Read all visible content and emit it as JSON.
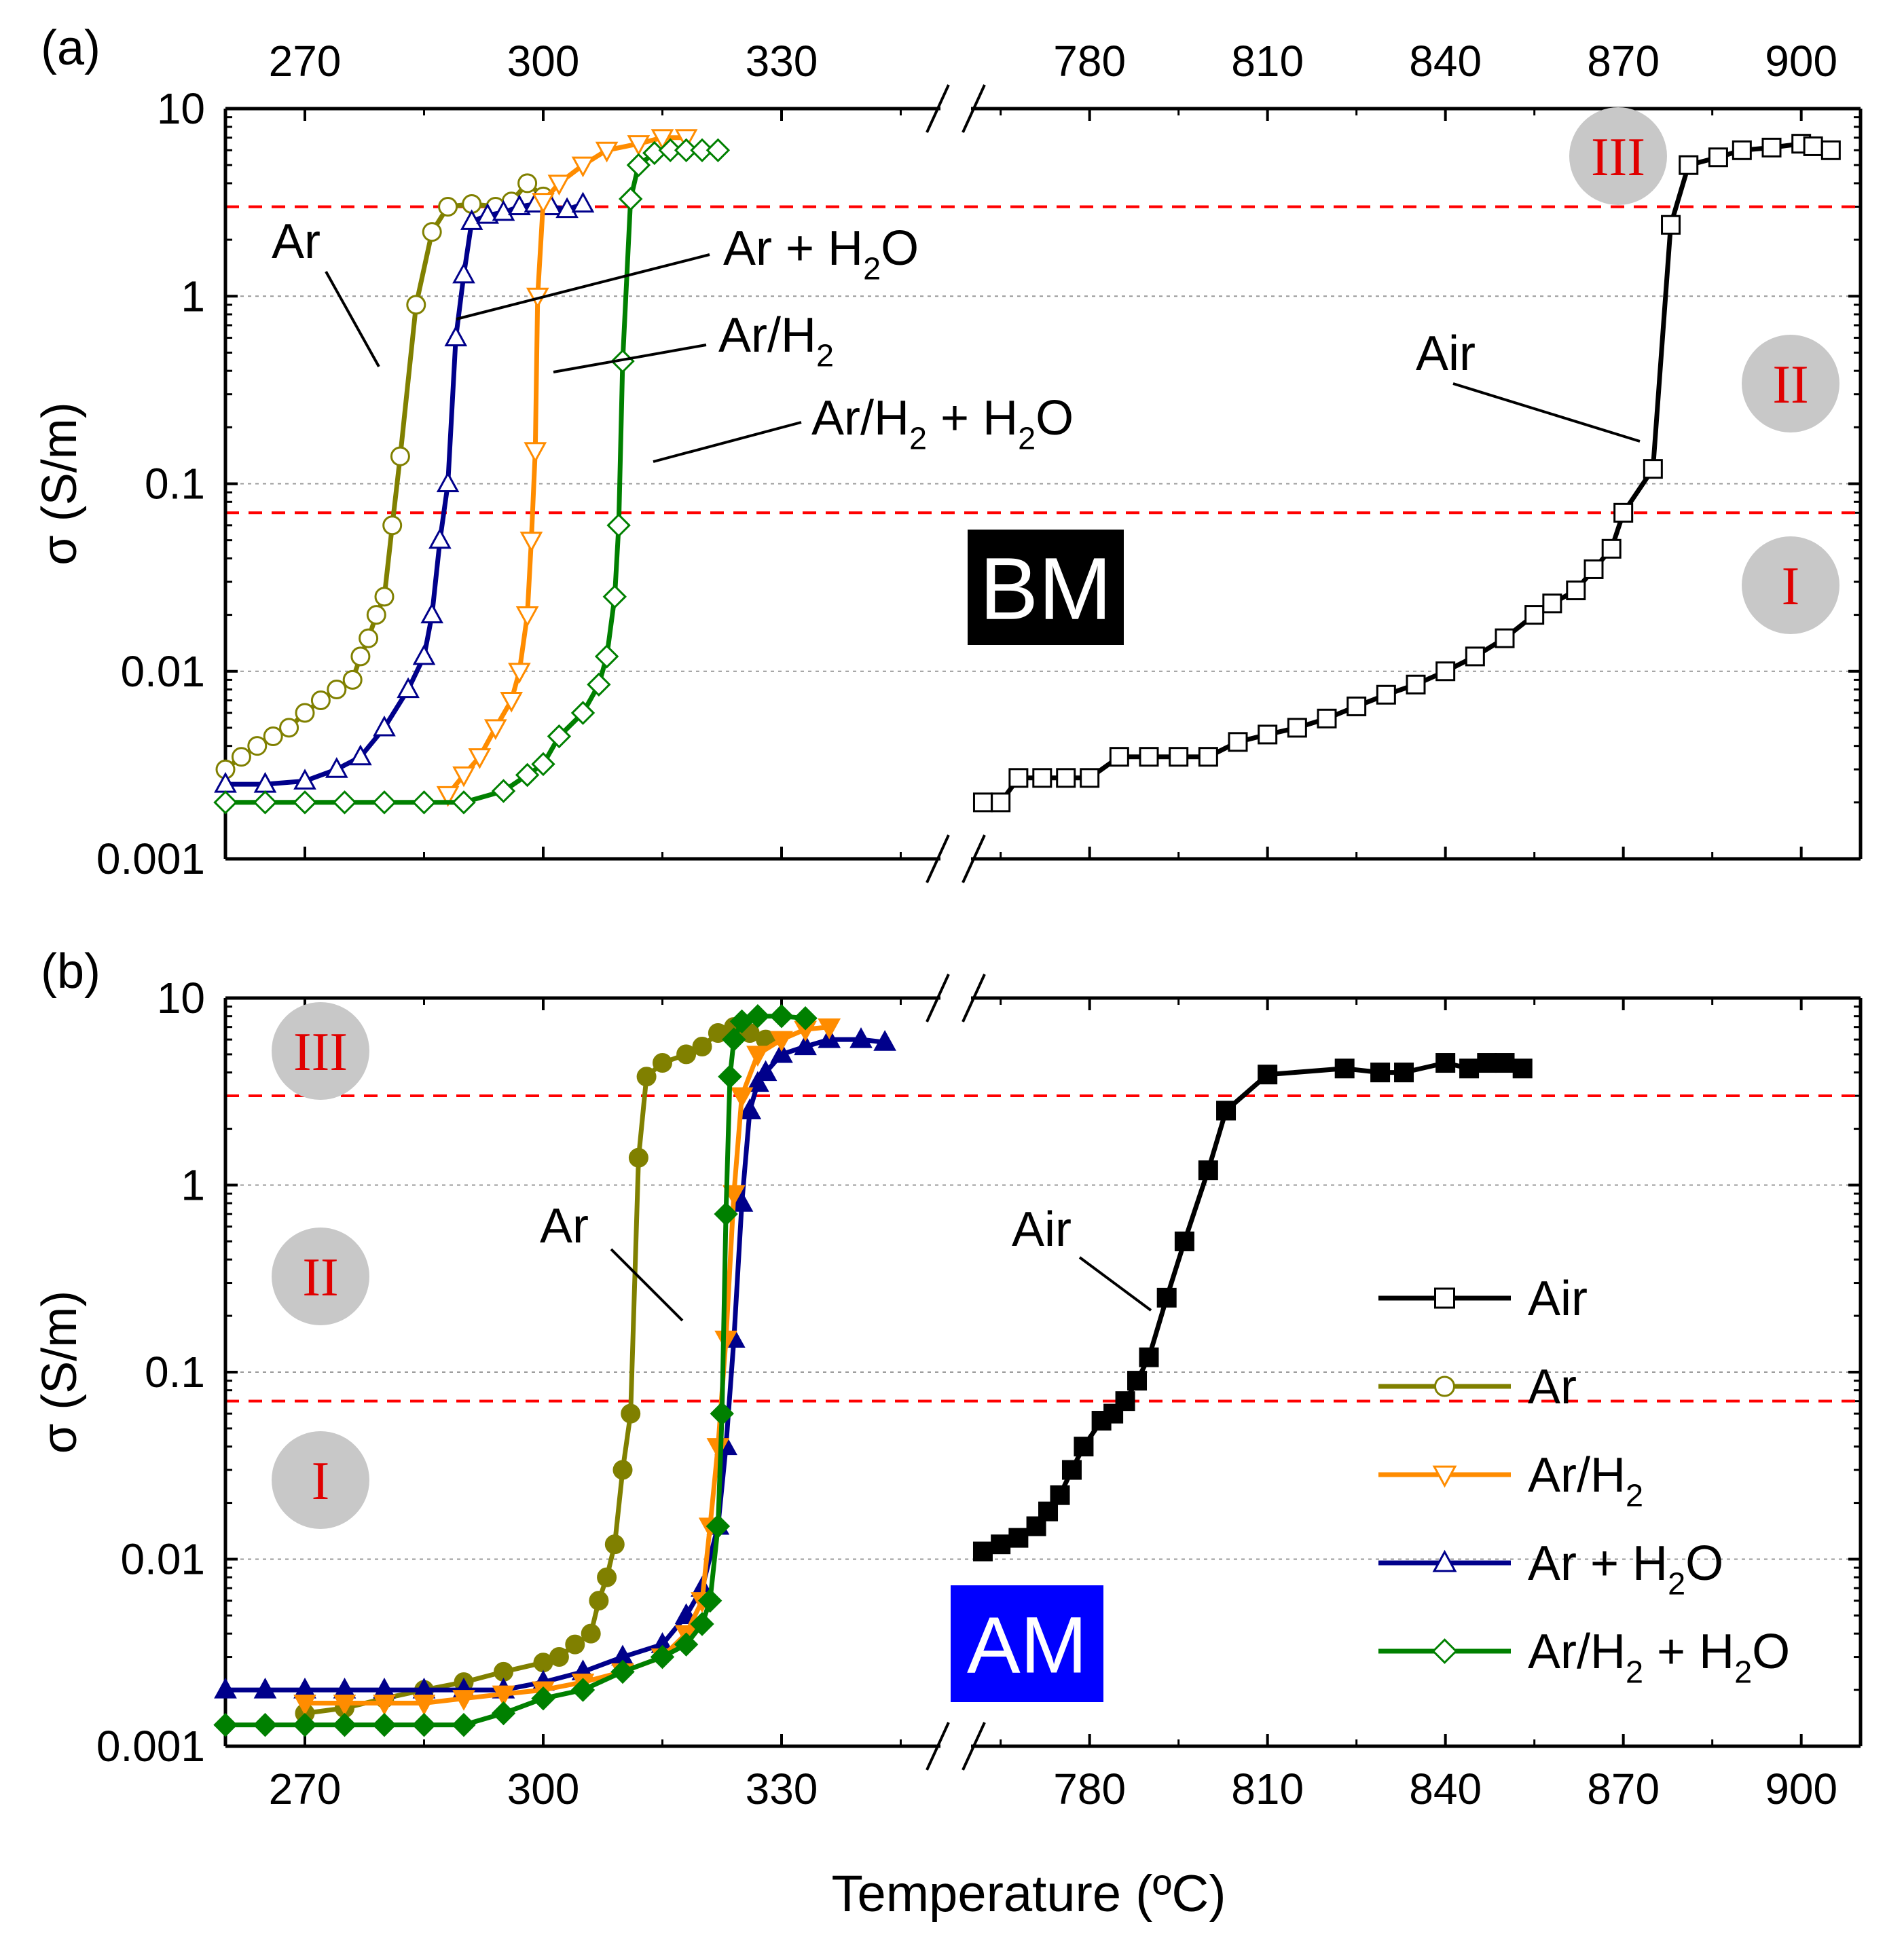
{
  "figure": {
    "x_axis_label": "Temperature (ºC)",
    "y_axis_label": "σ (S/m)",
    "colors": {
      "Air": "#000000",
      "Ar": "#808000",
      "Ar/H2": "#ff8c00",
      "Ar + H2O": "#00008b",
      "Ar/H2 + H2O": "#008000",
      "threshold": "#ff0000",
      "region_text": "#e00000",
      "region_circle": "#c8c8c8",
      "BM_badge": "#000000",
      "AM_badge": "#0000ff"
    },
    "legend": {
      "items": [
        {
          "key": "Air",
          "label": "Air",
          "marker": "square"
        },
        {
          "key": "Ar",
          "label": "Ar",
          "marker": "circle"
        },
        {
          "key": "Ar/H2",
          "label": "Ar/H",
          "sub1": "2",
          "marker": "tri-down"
        },
        {
          "key": "Ar + H2O",
          "label": "Ar + H",
          "sub1": "2",
          "tail": "O",
          "marker": "tri-up"
        },
        {
          "key": "Ar/H2 + H2O",
          "label": "Ar/H",
          "sub1": "2",
          "mid": " + H",
          "sub2": "2",
          "tail": "O",
          "marker": "diamond"
        }
      ]
    }
  },
  "chart_data": [
    {
      "panel_label": "(a)",
      "badge": "BM",
      "type": "scatter",
      "title": "",
      "xlabel": "",
      "ylabel": "σ (S/m)",
      "yscale": "log",
      "ylim": [
        0.001,
        10
      ],
      "y_ticks": [
        "0.001",
        "0.01",
        "0.1",
        "1",
        "10"
      ],
      "x_broken_axis": true,
      "x_left_range": [
        260,
        350
      ],
      "x_right_range": [
        760,
        910
      ],
      "x_left_ticks": [
        "270",
        "300",
        "330"
      ],
      "x_right_ticks": [
        "780",
        "810",
        "840",
        "870",
        "900"
      ],
      "thresholds": [
        3,
        0.07
      ],
      "regions": [
        "III",
        "II",
        "I"
      ],
      "annotations": [
        {
          "text": "Ar",
          "series": "Ar"
        },
        {
          "text": "Ar + H",
          "sub1": "2",
          "tail": "O",
          "series": "Ar + H2O"
        },
        {
          "text": "Ar/H",
          "sub1": "2",
          "series": "Ar/H2"
        },
        {
          "text": "Ar/H",
          "sub1": "2",
          "mid": " + H",
          "sub2": "2",
          "tail": "O",
          "series": "Ar/H2 + H2O"
        },
        {
          "text": "Air",
          "series": "Air"
        }
      ],
      "series": [
        {
          "name": "Ar",
          "filled": false,
          "marker": "circle",
          "x": [
            260,
            262,
            264,
            266,
            268,
            270,
            272,
            274,
            276,
            277,
            278,
            279,
            280,
            281,
            282,
            284,
            286,
            288,
            291,
            294,
            296,
            298,
            300
          ],
          "y": [
            0.003,
            0.0035,
            0.004,
            0.0045,
            0.005,
            0.006,
            0.007,
            0.008,
            0.009,
            0.012,
            0.015,
            0.02,
            0.025,
            0.06,
            0.14,
            0.9,
            2.2,
            3.0,
            3.1,
            3.0,
            3.2,
            4.0,
            3.4
          ]
        },
        {
          "name": "Ar + H2O",
          "filled": false,
          "marker": "tri-up",
          "x": [
            260,
            265,
            270,
            274,
            277,
            280,
            283,
            285,
            286,
            287,
            288,
            289,
            290,
            291,
            293,
            295,
            297,
            299,
            301,
            303,
            305
          ],
          "y": [
            0.0025,
            0.0025,
            0.0026,
            0.003,
            0.0035,
            0.005,
            0.008,
            0.012,
            0.02,
            0.05,
            0.1,
            0.6,
            1.3,
            2.5,
            2.7,
            2.8,
            3.0,
            3.1,
            3.0,
            2.9,
            3.1
          ]
        },
        {
          "name": "Ar/H2",
          "filled": false,
          "marker": "tri-down",
          "x": [
            288,
            290,
            292,
            294,
            296,
            297,
            298,
            298.5,
            299,
            299.3,
            300,
            302,
            305,
            308,
            312,
            315,
            318
          ],
          "y": [
            0.0022,
            0.0028,
            0.0035,
            0.005,
            0.007,
            0.01,
            0.02,
            0.05,
            0.15,
            1.0,
            3.2,
            4.0,
            5.0,
            6.0,
            6.5,
            7.0,
            7.0
          ]
        },
        {
          "name": "Ar/H2 + H2O",
          "filled": false,
          "marker": "diamond",
          "x": [
            260,
            265,
            270,
            275,
            280,
            285,
            290,
            295,
            298,
            300,
            302,
            305,
            307,
            308,
            309,
            309.5,
            310,
            311,
            312,
            314,
            316,
            318,
            320,
            322
          ],
          "y": [
            0.002,
            0.002,
            0.002,
            0.002,
            0.002,
            0.002,
            0.002,
            0.0023,
            0.0028,
            0.0032,
            0.0045,
            0.006,
            0.0085,
            0.012,
            0.025,
            0.06,
            0.45,
            3.3,
            5.0,
            5.8,
            6.0,
            6.0,
            6.0,
            6.0
          ]
        },
        {
          "name": "Air",
          "filled": false,
          "marker": "square",
          "x": [
            762,
            765,
            768,
            772,
            776,
            780,
            785,
            790,
            795,
            800,
            805,
            810,
            815,
            820,
            825,
            830,
            835,
            840,
            845,
            850,
            855,
            858,
            862,
            865,
            868,
            870,
            875,
            878,
            881,
            886,
            890,
            895,
            900,
            902,
            905
          ],
          "y": [
            0.002,
            0.002,
            0.0027,
            0.0027,
            0.0027,
            0.0027,
            0.0035,
            0.0035,
            0.0035,
            0.0035,
            0.0042,
            0.0046,
            0.005,
            0.0056,
            0.0065,
            0.0075,
            0.0085,
            0.01,
            0.012,
            0.015,
            0.02,
            0.023,
            0.027,
            0.035,
            0.045,
            0.07,
            0.12,
            2.4,
            5.0,
            5.5,
            6.0,
            6.2,
            6.5,
            6.3,
            6.0
          ]
        }
      ]
    },
    {
      "panel_label": "(b)",
      "badge": "AM",
      "type": "scatter",
      "title": "",
      "xlabel": "Temperature (ºC)",
      "ylabel": "σ (S/m)",
      "yscale": "log",
      "ylim": [
        0.001,
        10
      ],
      "y_ticks": [
        "0.001",
        "0.01",
        "0.1",
        "1",
        "10"
      ],
      "x_broken_axis": true,
      "x_left_range": [
        260,
        350
      ],
      "x_right_range": [
        760,
        910
      ],
      "x_left_ticks": [
        "270",
        "300",
        "330"
      ],
      "x_right_ticks": [
        "780",
        "810",
        "840",
        "870",
        "900"
      ],
      "thresholds": [
        3,
        0.07
      ],
      "regions": [
        "III",
        "II",
        "I"
      ],
      "annotations": [
        {
          "text": "Ar",
          "series": "Ar"
        },
        {
          "text": "Air",
          "series": "Air"
        }
      ],
      "series": [
        {
          "name": "Ar",
          "filled": true,
          "marker": "circle",
          "x": [
            270,
            275,
            280,
            285,
            290,
            295,
            300,
            302,
            304,
            306,
            307,
            308,
            309,
            310,
            311,
            312,
            313,
            315,
            318,
            320,
            322,
            324,
            326,
            328
          ],
          "y": [
            0.0015,
            0.0016,
            0.0018,
            0.002,
            0.0022,
            0.0025,
            0.0028,
            0.003,
            0.0035,
            0.004,
            0.006,
            0.008,
            0.012,
            0.03,
            0.06,
            1.4,
            3.8,
            4.5,
            5.0,
            5.5,
            6.5,
            7.0,
            6.5,
            6.0
          ]
        },
        {
          "name": "Ar + H2O",
          "filled": true,
          "marker": "tri-up",
          "x": [
            260,
            265,
            270,
            275,
            280,
            285,
            290,
            295,
            300,
            305,
            310,
            315,
            318,
            320,
            322,
            323,
            324,
            325,
            326,
            327,
            328,
            330,
            333,
            336,
            340,
            343
          ],
          "y": [
            0.002,
            0.002,
            0.002,
            0.002,
            0.002,
            0.002,
            0.002,
            0.002,
            0.0022,
            0.0025,
            0.003,
            0.0035,
            0.005,
            0.007,
            0.015,
            0.04,
            0.15,
            0.8,
            2.5,
            3.5,
            4.0,
            5.0,
            5.5,
            6.0,
            6.0,
            5.8
          ]
        },
        {
          "name": "Ar/H2",
          "filled": true,
          "marker": "tri-down",
          "x": [
            270,
            275,
            280,
            285,
            290,
            295,
            300,
            305,
            310,
            315,
            318,
            320,
            321,
            322,
            323,
            324,
            325,
            327,
            330,
            333,
            336
          ],
          "y": [
            0.0017,
            0.0017,
            0.0017,
            0.0017,
            0.0018,
            0.0019,
            0.002,
            0.0022,
            0.0025,
            0.003,
            0.004,
            0.006,
            0.015,
            0.04,
            0.15,
            0.9,
            3.0,
            5.0,
            6.0,
            6.8,
            7.0
          ]
        },
        {
          "name": "Ar/H2 + H2O",
          "filled": true,
          "marker": "diamond",
          "x": [
            260,
            265,
            270,
            275,
            280,
            285,
            290,
            295,
            300,
            305,
            310,
            315,
            318,
            320,
            321,
            322,
            322.5,
            323,
            323.5,
            324,
            325,
            327,
            330,
            333
          ],
          "y": [
            0.0013,
            0.0013,
            0.0013,
            0.0013,
            0.0013,
            0.0013,
            0.0013,
            0.0015,
            0.0018,
            0.002,
            0.0025,
            0.003,
            0.0035,
            0.0045,
            0.006,
            0.015,
            0.06,
            0.7,
            3.8,
            6.0,
            7.5,
            8.0,
            8.0,
            7.8
          ]
        },
        {
          "name": "Air",
          "filled": true,
          "marker": "square",
          "x": [
            762,
            765,
            768,
            771,
            773,
            775,
            777,
            779,
            782,
            784,
            786,
            788,
            790,
            793,
            796,
            800,
            803,
            810,
            823,
            829,
            833,
            840,
            844,
            847,
            850,
            853
          ],
          "y": [
            0.011,
            0.012,
            0.013,
            0.015,
            0.018,
            0.022,
            0.03,
            0.04,
            0.055,
            0.06,
            0.07,
            0.09,
            0.12,
            0.25,
            0.5,
            1.2,
            2.5,
            3.9,
            4.2,
            4.0,
            4.0,
            4.5,
            4.2,
            4.5,
            4.5,
            4.2
          ]
        }
      ]
    }
  ]
}
